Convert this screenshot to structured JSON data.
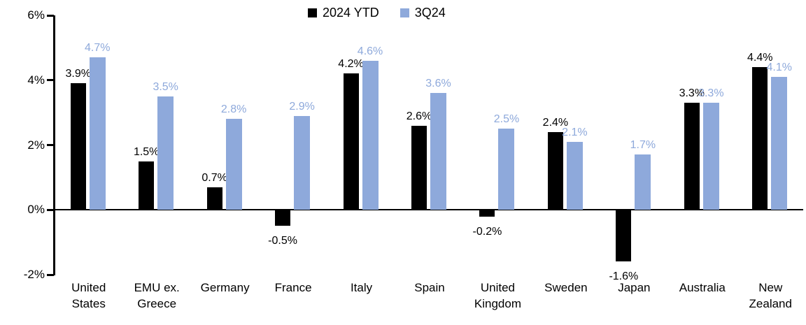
{
  "chart_data": {
    "type": "bar",
    "title": "",
    "xlabel": "",
    "ylabel": "",
    "grid": false,
    "legend_position": "top-center",
    "ylim": [
      -2,
      6
    ],
    "yticks": [
      {
        "value": 6,
        "label": "6%"
      },
      {
        "value": 4,
        "label": "4%"
      },
      {
        "value": 2,
        "label": "2%"
      },
      {
        "value": 0,
        "label": "0%"
      },
      {
        "value": -2,
        "label": "-2%"
      }
    ],
    "categories": [
      "United\nStates",
      "EMU ex.\nGreece",
      "Germany",
      "France",
      "Italy",
      "Spain",
      "United\nKingdom",
      "Sweden",
      "Japan",
      "Australia",
      "New\nZealand"
    ],
    "series": [
      {
        "name": "2024 YTD",
        "color": "#000000",
        "values": [
          3.9,
          1.5,
          0.7,
          -0.5,
          4.2,
          2.6,
          -0.2,
          2.4,
          -1.6,
          3.3,
          4.4
        ],
        "labels": [
          "3.9%",
          "1.5%",
          "0.7%",
          "-0.5%",
          "4.2%",
          "2.6%",
          "-0.2%",
          "2.4%",
          "-1.6%",
          "3.3%",
          "4.4%"
        ]
      },
      {
        "name": "3Q24",
        "color": "#8EA9DB",
        "values": [
          4.7,
          3.5,
          2.8,
          2.9,
          4.6,
          3.6,
          2.5,
          2.1,
          1.7,
          3.3,
          4.1
        ],
        "labels": [
          "4.7%",
          "3.5%",
          "2.8%",
          "2.9%",
          "4.6%",
          "3.6%",
          "2.5%",
          "2.1%",
          "1.7%",
          "3.3%",
          "4.1%"
        ]
      }
    ]
  }
}
